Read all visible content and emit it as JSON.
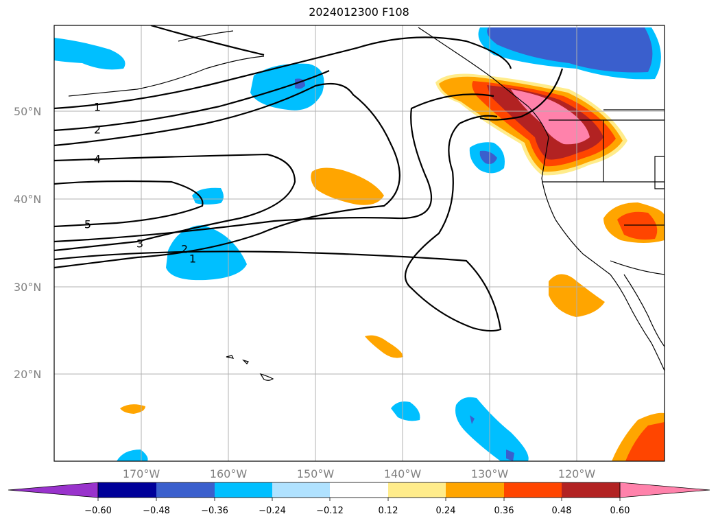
{
  "title": "2024012300 F108",
  "colors": {
    "neg_060": "#9933cc",
    "neg_048": "#000099",
    "neg_036": "#3a5fcd",
    "neg_024": "#00bfff",
    "neg_012": "#b0e2ff",
    "zero": "#ffffff",
    "pos_012": "#ffec8b",
    "pos_024": "#ffa500",
    "pos_036": "#ff4500",
    "pos_048": "#b22222",
    "pos_060": "#ff82ab"
  },
  "map": {
    "lat_labels": [
      "50°N",
      "40°N",
      "30°N",
      "20°N"
    ],
    "lon_labels": [
      "170°W",
      "160°W",
      "150°W",
      "140°W",
      "130°W",
      "120°W"
    ]
  },
  "contour_labels": [
    "1",
    "2",
    "4",
    "5",
    "3",
    "2",
    "1"
  ],
  "colorbar": {
    "ticks": [
      "−0.60",
      "−0.48",
      "−0.36",
      "−0.24",
      "−0.12",
      "0.12",
      "0.24",
      "0.36",
      "0.48",
      "0.60"
    ]
  }
}
